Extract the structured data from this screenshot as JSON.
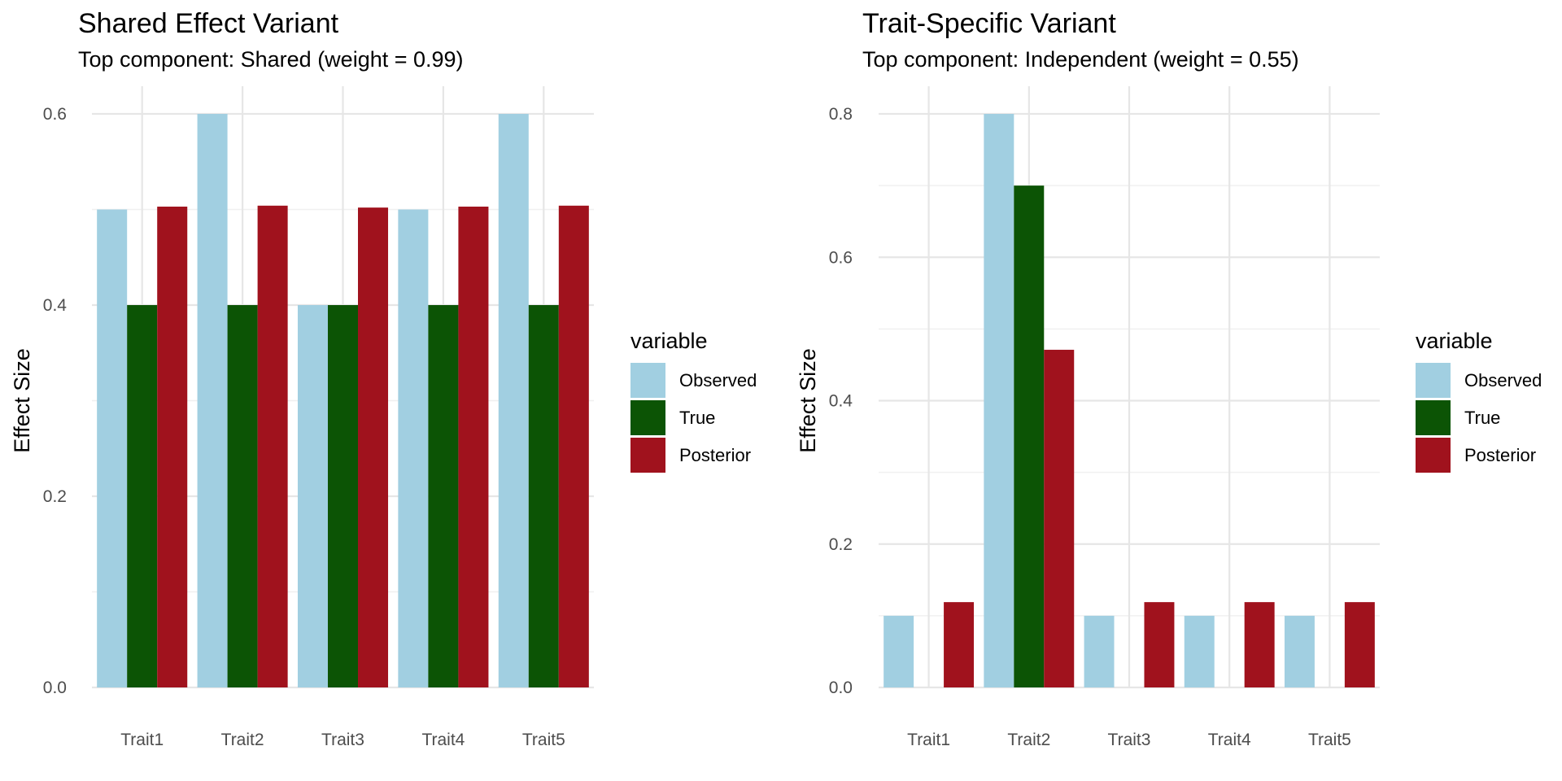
{
  "chart_data": [
    {
      "type": "bar",
      "title": "Shared Effect Variant",
      "subtitle": "Top component: Shared (weight = 0.99)",
      "xlabel": "",
      "ylabel": "Effect Size",
      "categories": [
        "Trait1",
        "Trait2",
        "Trait3",
        "Trait4",
        "Trait5"
      ],
      "series": [
        {
          "name": "Observed",
          "color": "#a1cfe1",
          "values": [
            0.5,
            0.6,
            0.4,
            0.5,
            0.6
          ]
        },
        {
          "name": "True",
          "color": "#0c5405",
          "values": [
            0.4,
            0.4,
            0.4,
            0.4,
            0.4
          ]
        },
        {
          "name": "Posterior",
          "color": "#a0121d",
          "values": [
            0.503,
            0.504,
            0.502,
            0.503,
            0.504
          ]
        }
      ],
      "ylim": [
        0,
        0.6
      ],
      "yticks": [
        "0.0",
        "0.2",
        "0.4",
        "0.6"
      ],
      "ytick_values": [
        0,
        0.2,
        0.4,
        0.6
      ],
      "grid": true,
      "legend_title": "variable",
      "legend_position": "right"
    },
    {
      "type": "bar",
      "title": "Trait-Specific Variant",
      "subtitle": "Top component: Independent (weight = 0.55)",
      "xlabel": "",
      "ylabel": "Effect Size",
      "categories": [
        "Trait1",
        "Trait2",
        "Trait3",
        "Trait4",
        "Trait5"
      ],
      "series": [
        {
          "name": "Observed",
          "color": "#a1cfe1",
          "values": [
            0.1,
            0.8,
            0.1,
            0.1,
            0.1
          ]
        },
        {
          "name": "True",
          "color": "#0c5405",
          "values": [
            0,
            0.7,
            0,
            0,
            0
          ]
        },
        {
          "name": "Posterior",
          "color": "#a0121d",
          "values": [
            0.119,
            0.471,
            0.119,
            0.119,
            0.119
          ]
        }
      ],
      "ylim": [
        0,
        0.8
      ],
      "yticks": [
        "0.0",
        "0.2",
        "0.4",
        "0.6",
        "0.8"
      ],
      "ytick_values": [
        0,
        0.2,
        0.4,
        0.6,
        0.8
      ],
      "grid": true,
      "legend_title": "variable",
      "legend_position": "right"
    }
  ]
}
